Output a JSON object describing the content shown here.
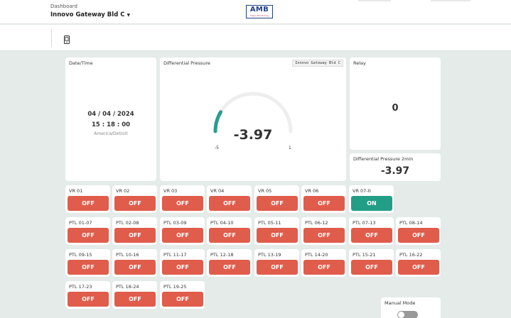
{
  "header": {
    "breadcrumb": "Dashboard",
    "site_name": "Innovo Gateway Bld C",
    "logo_text": "AMB",
    "logo_subtext": "Vapor Monitoring"
  },
  "toolbar": {
    "device_icon": "mobile-device-icon"
  },
  "datetime_card": {
    "title": "Date/Time",
    "date": "04 / 04 / 2024",
    "time": "15 : 18 : 00",
    "timezone": "America/Detroit"
  },
  "pressure_card": {
    "title": "Differential Pressure",
    "tag": "Innovo Gateway Bld C",
    "value": "-3.97",
    "min_label": "-5",
    "max_label": "1",
    "min": -5,
    "max": 1,
    "current": -3.97,
    "accent_color": "#2a9d8f",
    "track_color": "#eeeeee"
  },
  "relay_card": {
    "title": "Relay",
    "value": "0"
  },
  "pressure2_card": {
    "title": "Differential Pressure 2min",
    "value": "-3.97"
  },
  "switches": [
    {
      "label": "VR 01",
      "state": "OFF"
    },
    {
      "label": "VR 02",
      "state": "OFF"
    },
    {
      "label": "VR 03",
      "state": "OFF"
    },
    {
      "label": "VR 04",
      "state": "OFF"
    },
    {
      "label": "VR 05",
      "state": "OFF"
    },
    {
      "label": "VR 06",
      "state": "OFF"
    },
    {
      "label": "VR 07-0",
      "state": "ON"
    },
    {
      "label": "PTL 01-07",
      "state": "OFF"
    },
    {
      "label": "PTL 02-08",
      "state": "OFF"
    },
    {
      "label": "PTL 03-09",
      "state": "OFF"
    },
    {
      "label": "PTL 04-10",
      "state": "OFF"
    },
    {
      "label": "PTL 05-11",
      "state": "OFF"
    },
    {
      "label": "PTL 06-12",
      "state": "OFF"
    },
    {
      "label": "PTL 07-13",
      "state": "OFF"
    },
    {
      "label": "PTL 08-14",
      "state": "OFF"
    },
    {
      "label": "PTL 09-15",
      "state": "OFF"
    },
    {
      "label": "PTL 10-16",
      "state": "OFF"
    },
    {
      "label": "PTL 11-17",
      "state": "OFF"
    },
    {
      "label": "PTL 12-18",
      "state": "OFF"
    },
    {
      "label": "PTL 13-19",
      "state": "OFF"
    },
    {
      "label": "PTL 14-20",
      "state": "OFF"
    },
    {
      "label": "PTL 15-21",
      "state": "OFF"
    },
    {
      "label": "PTL 16-22",
      "state": "OFF"
    },
    {
      "label": "PTL 17-23",
      "state": "OFF"
    },
    {
      "label": "PTL 18-24",
      "state": "OFF"
    },
    {
      "label": "PTL 19-25",
      "state": "OFF"
    }
  ],
  "manual_mode": {
    "title": "Manual Mode",
    "enabled": false
  },
  "colors": {
    "off": "#e05c4b",
    "on": "#239e86",
    "background": "#e4ebe9"
  }
}
